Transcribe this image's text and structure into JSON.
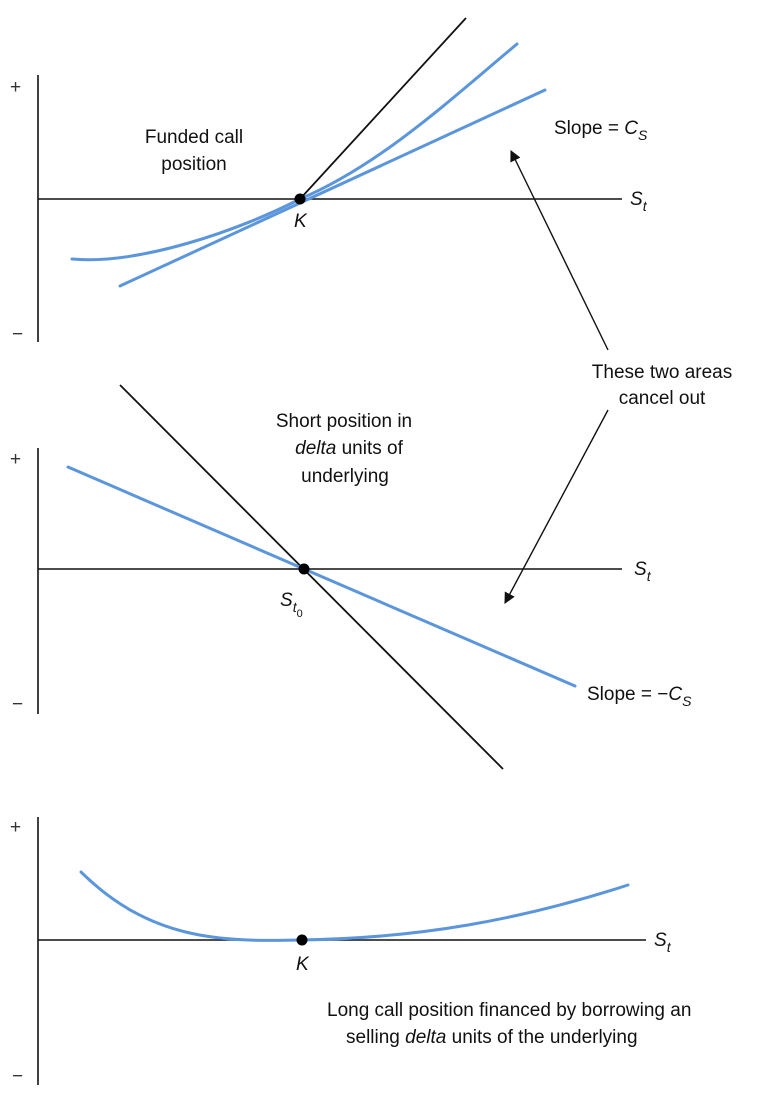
{
  "panel1": {
    "plus": "+",
    "minus": "−",
    "title_line1": "Funded call",
    "title_line2": "position",
    "point_label": "K",
    "axis_label": "S",
    "axis_sub": "t",
    "slope_label": "Slope = ",
    "slope_var": "C",
    "slope_sub": "S"
  },
  "annotation": {
    "line1": "These two areas",
    "line2": "cancel out"
  },
  "panel2": {
    "plus": "+",
    "minus": "−",
    "title_line1": "Short position in",
    "title_line2_italic": "delta",
    "title_line2_rest": " units of",
    "title_line3": "underlying",
    "point_label": "S",
    "point_sub": "t",
    "point_subsub": "0",
    "axis_label": "S",
    "axis_sub": "t",
    "slope_label": "Slope = −",
    "slope_var": "C",
    "slope_sub": "S"
  },
  "panel3": {
    "plus": "+",
    "minus": "−",
    "point_label": "K",
    "axis_label": "S",
    "axis_sub": "t",
    "caption_line1": "Long call position financed by borrowing an",
    "caption_line2_pre": "selling ",
    "caption_line2_italic": "delta",
    "caption_line2_rest": " units of the underlying"
  }
}
